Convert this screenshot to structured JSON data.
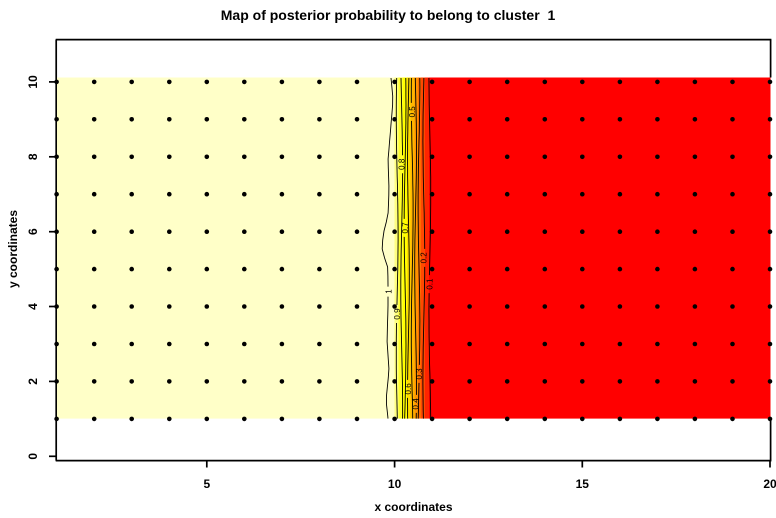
{
  "chart_data": {
    "type": "heatmap",
    "title": "Map of posterior probability to belong to cluster  1",
    "xlabel": "x coordinates",
    "ylabel": "y coordinates",
    "x_ticks": [
      5,
      10,
      15,
      20
    ],
    "y_ticks": [
      0,
      2,
      4,
      6,
      8,
      10
    ],
    "xlim": [
      1,
      20
    ],
    "ylim": [
      -0.1,
      11.1
    ],
    "image_extent": {
      "x": [
        1,
        20
      ],
      "y": [
        1,
        10
      ]
    },
    "palette": "heat-colors",
    "high_color": "#FFFFC8",
    "low_color": "#FF0000",
    "grid_points": {
      "x_start": 1,
      "x_end": 20,
      "x_step": 1,
      "y_start": 1,
      "y_end": 10,
      "y_step": 1,
      "marker": "filled-black-dot"
    },
    "regions": [
      {
        "name": "high-probability-cream",
        "x_from": 1,
        "x_to": 10,
        "color": "#FFFFC8"
      },
      {
        "name": "transition-gradient",
        "x_from": 10,
        "x_to": 11
      },
      {
        "name": "low-probability-red",
        "x_from": 11,
        "x_to": 20,
        "color": "#FF0000"
      }
    ],
    "bands": [
      {
        "color": "#FFFFC8",
        "to_x": 10.0
      },
      {
        "color": "#FFFF80",
        "to_x": 10.1
      },
      {
        "color": "#FFFF2A",
        "to_x": 10.22
      },
      {
        "color": "#FFFF00",
        "to_x": 10.33
      },
      {
        "color": "#FFDB00",
        "to_x": 10.43
      },
      {
        "color": "#FFB600",
        "to_x": 10.53
      },
      {
        "color": "#FF9200",
        "to_x": 10.62
      },
      {
        "color": "#FF6D00",
        "to_x": 10.71
      },
      {
        "color": "#FF4900",
        "to_x": 10.81
      },
      {
        "color": "#FF2400",
        "to_x": 10.92
      },
      {
        "color": "#FF0000",
        "to_x": 20.0
      }
    ],
    "contours": [
      {
        "level": "1",
        "x": 9.84,
        "label_y": 4.4,
        "wiggly": true
      },
      {
        "level": "0.9",
        "x": 10.07,
        "label_y": 3.8
      },
      {
        "level": "0.8",
        "x": 10.19,
        "label_y": 7.8
      },
      {
        "level": "0.7",
        "x": 10.28,
        "label_y": 6.1
      },
      {
        "level": "0.6",
        "x": 10.37,
        "label_y": 1.8
      },
      {
        "level": "0.5",
        "x": 10.47,
        "label_y": 9.2
      },
      {
        "level": "0.4",
        "x": 10.56,
        "label_y": 1.4
      },
      {
        "level": "0.3",
        "x": 10.65,
        "label_y": 2.2
      },
      {
        "level": "0.2",
        "x": 10.78,
        "label_y": 5.3
      },
      {
        "level": "0.1",
        "x": 10.94,
        "label_y": 4.6
      }
    ],
    "legend": "none"
  }
}
